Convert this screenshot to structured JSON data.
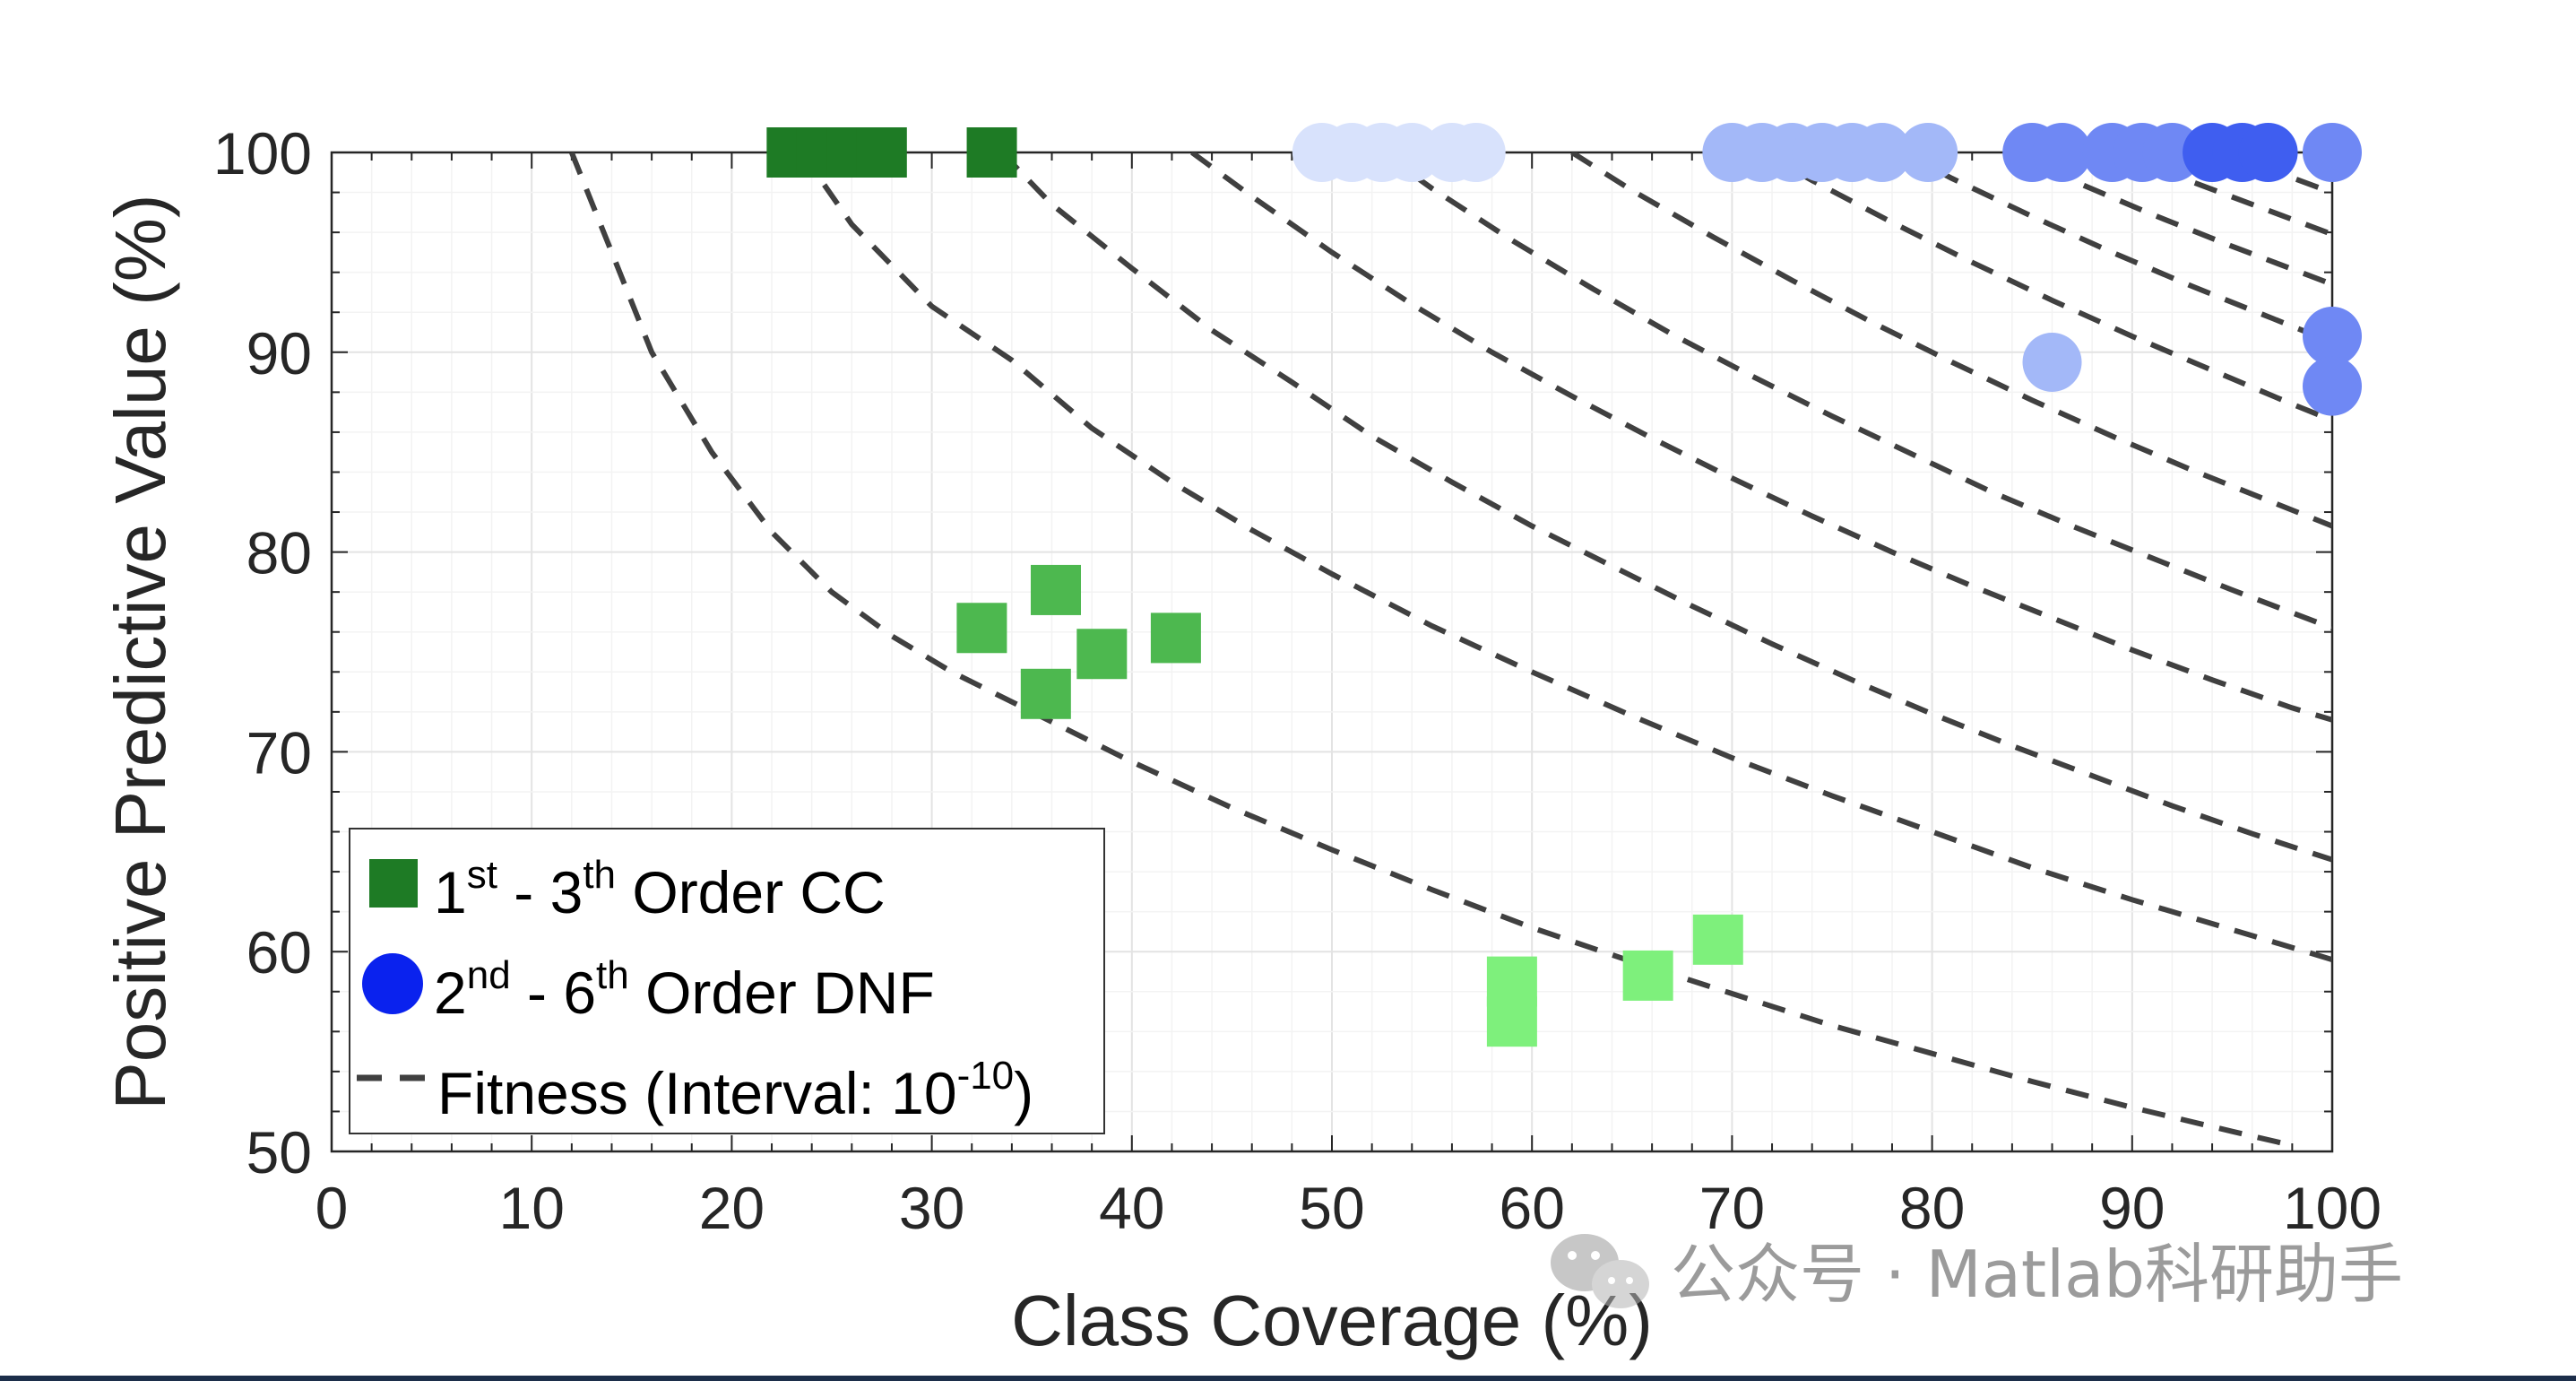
{
  "chart_data": {
    "type": "scatter",
    "xlabel": "Class Coverage (%)",
    "ylabel": "Positive Predictive Value (%)",
    "xlim": [
      0,
      100
    ],
    "ylim": [
      50,
      100
    ],
    "xticks": [
      0,
      10,
      20,
      30,
      40,
      50,
      60,
      70,
      80,
      90,
      100
    ],
    "yticks": [
      50,
      60,
      70,
      80,
      90,
      100
    ],
    "grid": true,
    "legend_position": "bottom-left",
    "legend": {
      "cc": {
        "base": "1",
        "sup1": "st",
        "mid": " - 3",
        "sup2": "th",
        "tail": " Order CC",
        "color": "#1e7b25"
      },
      "dnf": {
        "base": "2",
        "sup1": "nd",
        "mid": " - 6",
        "sup2": "th",
        "tail": " Order DNF",
        "color": "#0a22ee"
      },
      "fit": {
        "text": "Fitness (Interval: 10",
        "sup": "-10",
        "tail": ")",
        "color": "#404040"
      }
    },
    "series": [
      {
        "name": "1st - 3th Order CC",
        "marker": "square",
        "points": [
          {
            "x": 23,
            "y": 100,
            "color": "#1e7b25"
          },
          {
            "x": 24.5,
            "y": 100,
            "color": "#1e7b25"
          },
          {
            "x": 26,
            "y": 100,
            "color": "#1e7b25"
          },
          {
            "x": 27.5,
            "y": 100,
            "color": "#1e7b25"
          },
          {
            "x": 33,
            "y": 100,
            "color": "#1e7b25"
          },
          {
            "x": 32.5,
            "y": 76.2,
            "color": "#4db84f"
          },
          {
            "x": 36.2,
            "y": 78.1,
            "color": "#4db84f"
          },
          {
            "x": 35.7,
            "y": 72.9,
            "color": "#4db84f"
          },
          {
            "x": 38.5,
            "y": 74.9,
            "color": "#4db84f"
          },
          {
            "x": 42.2,
            "y": 75.7,
            "color": "#4db84f"
          },
          {
            "x": 59,
            "y": 56.5,
            "color": "#7ef07c"
          },
          {
            "x": 59,
            "y": 58.5,
            "color": "#7ef07c"
          },
          {
            "x": 65.8,
            "y": 58.8,
            "color": "#7ef07c"
          },
          {
            "x": 69.3,
            "y": 60.6,
            "color": "#7ef07c"
          }
        ]
      },
      {
        "name": "2nd - 6th Order DNF",
        "marker": "circle",
        "points": [
          {
            "x": 49.5,
            "y": 100,
            "color": "#d8e2fc"
          },
          {
            "x": 51,
            "y": 100,
            "color": "#d8e2fc"
          },
          {
            "x": 52.5,
            "y": 100,
            "color": "#d8e2fc"
          },
          {
            "x": 54,
            "y": 100,
            "color": "#d8e2fc"
          },
          {
            "x": 56,
            "y": 100,
            "color": "#d8e2fc"
          },
          {
            "x": 57.2,
            "y": 100,
            "color": "#d8e2fc"
          },
          {
            "x": 70,
            "y": 100,
            "color": "#a3b8f8"
          },
          {
            "x": 71.5,
            "y": 100,
            "color": "#a3b8f8"
          },
          {
            "x": 73,
            "y": 100,
            "color": "#a3b8f8"
          },
          {
            "x": 74.5,
            "y": 100,
            "color": "#a3b8f8"
          },
          {
            "x": 76,
            "y": 100,
            "color": "#a3b8f8"
          },
          {
            "x": 77.5,
            "y": 100,
            "color": "#a3b8f8"
          },
          {
            "x": 79.8,
            "y": 100,
            "color": "#a3b8f8"
          },
          {
            "x": 86,
            "y": 89.5,
            "color": "#a3b8f8"
          },
          {
            "x": 85,
            "y": 100,
            "color": "#6f88f4"
          },
          {
            "x": 86.5,
            "y": 100,
            "color": "#6f88f4"
          },
          {
            "x": 89,
            "y": 100,
            "color": "#6f88f4"
          },
          {
            "x": 90.5,
            "y": 100,
            "color": "#6f88f4"
          },
          {
            "x": 92,
            "y": 100,
            "color": "#6f88f4"
          },
          {
            "x": 100,
            "y": 100,
            "color": "#6f88f4"
          },
          {
            "x": 100,
            "y": 90.8,
            "color": "#6f88f4"
          },
          {
            "x": 100,
            "y": 88.3,
            "color": "#6f88f4"
          },
          {
            "x": 94,
            "y": 100,
            "color": "#3f5ef0"
          },
          {
            "x": 95.5,
            "y": 100,
            "color": "#3f5ef0"
          },
          {
            "x": 96.8,
            "y": 100,
            "color": "#3f5ef0"
          }
        ]
      },
      {
        "name": "Fitness (Interval: 10^-10)",
        "marker": "dashed-line",
        "curves": [
          [
            [
              12,
              100
            ],
            [
              14,
              95
            ],
            [
              16,
              90
            ],
            [
              19,
              85
            ],
            [
              22,
              81
            ],
            [
              25,
              78
            ],
            [
              28,
              75.8
            ],
            [
              31,
              74
            ],
            [
              35,
              72
            ],
            [
              40,
              69.5
            ],
            [
              45,
              67.2
            ],
            [
              50,
              65.1
            ],
            [
              55,
              63.1
            ],
            [
              60,
              61.2
            ],
            [
              65,
              59.5
            ],
            [
              70,
              57.9
            ],
            [
              75,
              56.3
            ],
            [
              80,
              54.9
            ],
            [
              85,
              53.5
            ],
            [
              90,
              52.2
            ],
            [
              95,
              51
            ],
            [
              98,
              50.3
            ]
          ],
          [
            [
              23.5,
              100
            ],
            [
              26,
              96.4
            ],
            [
              30,
              92.3
            ],
            [
              34,
              89.6
            ],
            [
              38,
              86.2
            ],
            [
              42,
              83.5
            ],
            [
              46,
              81.1
            ],
            [
              50,
              78.9
            ],
            [
              55,
              76.3
            ],
            [
              60,
              74
            ],
            [
              65,
              71.8
            ],
            [
              70,
              69.7
            ],
            [
              75,
              67.8
            ],
            [
              80,
              66
            ],
            [
              85,
              64.2
            ],
            [
              90,
              62.6
            ],
            [
              95,
              61.1
            ],
            [
              100,
              59.6
            ]
          ],
          [
            [
              33.5,
              100
            ],
            [
              36,
              97.4
            ],
            [
              40,
              94.2
            ],
            [
              44,
              91.1
            ],
            [
              48,
              88.5
            ],
            [
              52,
              85.8
            ],
            [
              56,
              83.5
            ],
            [
              60,
              81.3
            ],
            [
              64,
              79.3
            ],
            [
              68,
              77.3
            ],
            [
              72,
              75.4
            ],
            [
              76,
              73.6
            ],
            [
              80,
              71.9
            ],
            [
              84,
              70.3
            ],
            [
              88,
              68.8
            ],
            [
              92,
              67.3
            ],
            [
              96,
              65.9
            ],
            [
              100,
              64.6
            ]
          ],
          [
            [
              43,
              100
            ],
            [
              46,
              97.8
            ],
            [
              50,
              95
            ],
            [
              54,
              92.4
            ],
            [
              58,
              90
            ],
            [
              62,
              87.8
            ],
            [
              66,
              85.7
            ],
            [
              70,
              83.7
            ],
            [
              74,
              81.8
            ],
            [
              78,
              80
            ],
            [
              82,
              78.3
            ],
            [
              86,
              76.7
            ],
            [
              90,
              75.1
            ],
            [
              94,
              73.6
            ],
            [
              98,
              72.2
            ],
            [
              100,
              71.6
            ]
          ],
          [
            [
              52.5,
              100
            ],
            [
              55,
              98.2
            ],
            [
              59,
              95.6
            ],
            [
              63,
              93.2
            ],
            [
              67,
              90.9
            ],
            [
              71,
              88.8
            ],
            [
              75,
              86.8
            ],
            [
              79,
              84.9
            ],
            [
              83,
              83
            ],
            [
              87,
              81.3
            ],
            [
              91,
              79.7
            ],
            [
              95,
              78.1
            ],
            [
              100,
              76.2
            ]
          ],
          [
            [
              62,
              100
            ],
            [
              65,
              98.1
            ],
            [
              69,
              95.8
            ],
            [
              73,
              93.6
            ],
            [
              77,
              91.5
            ],
            [
              81,
              89.5
            ],
            [
              85,
              87.6
            ],
            [
              89,
              85.8
            ],
            [
              93,
              84.1
            ],
            [
              97,
              82.5
            ],
            [
              100,
              81.3
            ]
          ],
          [
            [
              71.5,
              100
            ],
            [
              74,
              98.6
            ],
            [
              78,
              96.5
            ],
            [
              82,
              94.5
            ],
            [
              86,
              92.6
            ],
            [
              90,
              90.8
            ],
            [
              94,
              89.1
            ],
            [
              98,
              87.4
            ],
            [
              100,
              86.6
            ]
          ],
          [
            [
              78.5,
              100
            ],
            [
              81,
              98.7
            ],
            [
              85,
              96.8
            ],
            [
              89,
              95
            ],
            [
              93,
              93.3
            ],
            [
              97,
              91.7
            ],
            [
              100,
              90.5
            ]
          ],
          [
            [
              84,
              100
            ],
            [
              87,
              98.6
            ],
            [
              91,
              96.9
            ],
            [
              95,
              95.3
            ],
            [
              100,
              93.4
            ]
          ],
          [
            [
              89.5,
              100
            ],
            [
              92,
              98.9
            ],
            [
              96,
              97.4
            ],
            [
              100,
              95.9
            ]
          ],
          [
            [
              94.5,
              100
            ],
            [
              97,
              99.1
            ],
            [
              100,
              98
            ]
          ]
        ]
      }
    ]
  },
  "watermark": {
    "text": "公众号 · Matlab科研助手",
    "icon": "wechat-icon"
  }
}
